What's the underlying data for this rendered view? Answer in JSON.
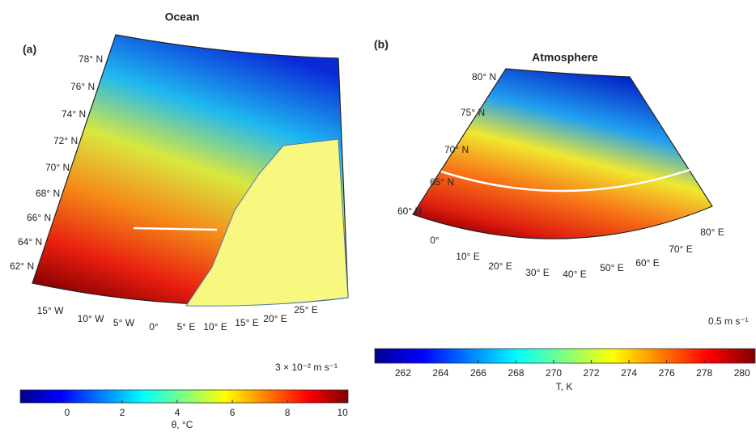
{
  "panels": [
    {
      "label": "(a)",
      "title": "Ocean",
      "lat_labels": [
        "78° N",
        "76° N",
        "74° N",
        "72° N",
        "70° N",
        "68° N",
        "66° N",
        "64° N",
        "62° N"
      ],
      "lon_labels": [
        "15° W",
        "10° W",
        "5° W",
        "0°",
        "5° E",
        "10° E",
        "15° E",
        "20° E",
        "25° E"
      ],
      "scale_label": "3 × 10⁻² m s⁻¹",
      "colorbar": {
        "lim": [
          -1.7,
          10.2
        ],
        "ticks": [
          0,
          2,
          4,
          6,
          8,
          10
        ],
        "label": "θ, °C"
      }
    },
    {
      "label": "(b)",
      "title": "Atmosphere",
      "lat_labels": [
        "80° N",
        "75° N",
        "70° N",
        "65° N",
        "60° N"
      ],
      "lon_labels": [
        "0°",
        "10° E",
        "20° E",
        "30° E",
        "40° E",
        "50° E",
        "60° E",
        "70° E",
        "80° E"
      ],
      "scale_label": "0.5 m s⁻¹",
      "colorbar": {
        "lim": [
          260.5,
          280.7
        ],
        "ticks": [
          262,
          264,
          266,
          268,
          270,
          272,
          274,
          276,
          278,
          280
        ],
        "label": "T, K"
      }
    }
  ]
}
